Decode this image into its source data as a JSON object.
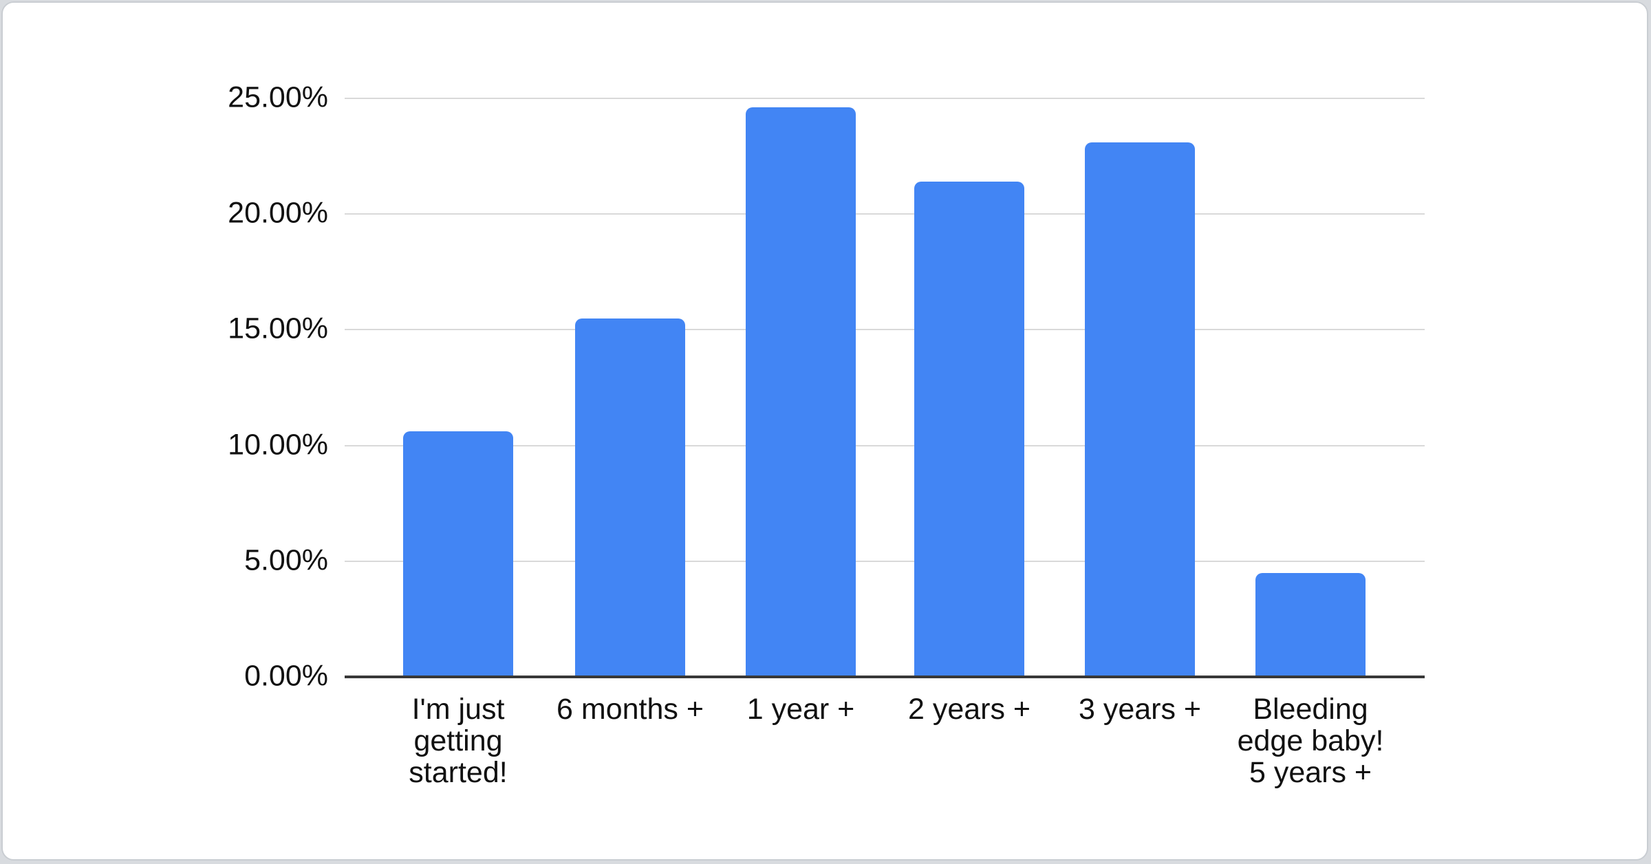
{
  "page": {
    "background_color": "#d8dbdf",
    "card_background": "#ffffff",
    "card_border_color": "#c9cdd2"
  },
  "chart_data": {
    "type": "bar",
    "title": "",
    "xlabel": "",
    "ylabel": "",
    "categories": [
      "I'm just getting started!",
      "6 months +",
      "1 year +",
      "2 years +",
      "3 years +",
      "Bleeding edge baby! 5 years +"
    ],
    "category_lines": [
      [
        "I'm just",
        "getting",
        "started!"
      ],
      [
        "6 months +"
      ],
      [
        "1 year +"
      ],
      [
        "2 years +"
      ],
      [
        "3 years +"
      ],
      [
        "Bleeding",
        "edge baby!",
        "5 years +"
      ]
    ],
    "values": [
      10.6,
      15.5,
      24.6,
      21.4,
      23.1,
      4.5
    ],
    "unit": "%",
    "ylim": [
      0,
      25
    ],
    "ytick_interval": 5,
    "ytick_labels": [
      "25.00%",
      "20.00%",
      "15.00%",
      "10.00%",
      "5.00%",
      "0.00%"
    ],
    "grid": true,
    "legend": "none",
    "bar_color": "#4285f4",
    "gridline_color": "#d9d9d9",
    "axis_line_color": "#383838",
    "label_color": "#111111"
  }
}
